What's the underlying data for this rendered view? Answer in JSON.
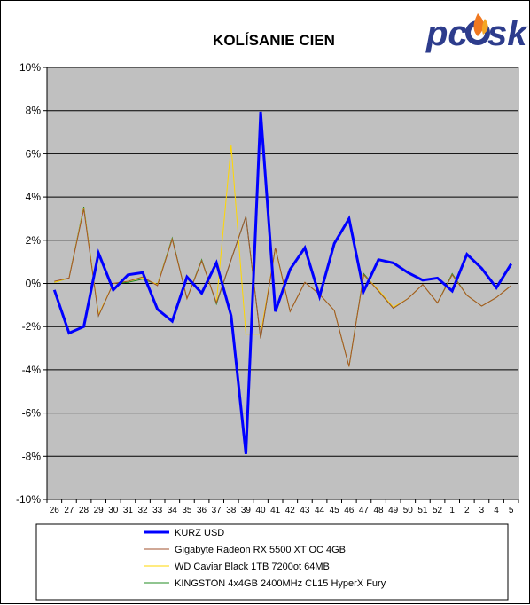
{
  "chart_data": {
    "type": "line",
    "title": "KOLÍSANIE CIEN",
    "xlabel": "",
    "ylabel": "",
    "categories": [
      "26",
      "27",
      "28",
      "29",
      "30",
      "31",
      "32",
      "33",
      "34",
      "35",
      "36",
      "37",
      "38",
      "39",
      "40",
      "41",
      "42",
      "43",
      "44",
      "45",
      "46",
      "47",
      "48",
      "49",
      "50",
      "51",
      "52",
      "1",
      "2",
      "3",
      "4",
      "5"
    ],
    "y_ticks": [
      {
        "value": 10,
        "label": "10%"
      },
      {
        "value": 8,
        "label": "8%"
      },
      {
        "value": 6,
        "label": "6%"
      },
      {
        "value": 4,
        "label": "4%"
      },
      {
        "value": 2,
        "label": "2%"
      },
      {
        "value": 0,
        "label": "0%"
      },
      {
        "value": -2,
        "label": "-2%"
      },
      {
        "value": -4,
        "label": "-4%"
      },
      {
        "value": -6,
        "label": "-6%"
      },
      {
        "value": -8,
        "label": "-8%"
      },
      {
        "value": -10,
        "label": "-10%"
      }
    ],
    "ylim": [
      -10,
      10
    ],
    "grid": "horizontal",
    "legend_position": "bottom",
    "plot_background": "#c0c0c0",
    "series": [
      {
        "name": "KURZ USD",
        "color": "#0000ff",
        "width": "thick",
        "values": [
          -0.3,
          -2.3,
          -2.0,
          1.4,
          -0.3,
          0.4,
          0.5,
          -1.2,
          -1.75,
          0.3,
          -0.45,
          0.95,
          -1.5,
          -7.9,
          7.95,
          -1.3,
          0.65,
          1.65,
          -0.6,
          1.85,
          3.0,
          -0.35,
          1.1,
          0.95,
          0.5,
          0.15,
          0.25,
          -0.35,
          1.35,
          0.7,
          -0.2,
          0.9
        ]
      },
      {
        "name": "Gigabyte Radeon RX 5500 XT OC 4GB",
        "color": "#a0522d",
        "width": "thin",
        "values": [
          0.1,
          0.25,
          3.45,
          -1.5,
          0.0,
          0.1,
          0.3,
          -0.1,
          2.05,
          -0.7,
          1.05,
          -0.9,
          1.1,
          3.1,
          -2.55,
          1.65,
          -1.3,
          0.05,
          -0.5,
          -1.25,
          -3.85,
          0.4,
          -0.35,
          -1.15,
          -0.7,
          -0.05,
          -0.9,
          0.4,
          -0.55,
          -1.05,
          -0.65,
          -0.1
        ]
      },
      {
        "name": "WD Caviar Black 1TB 7200ot 64MB",
        "color": "#ffd700",
        "width": "thin",
        "values": [
          0.05,
          0.25,
          3.5,
          -1.45,
          0.0,
          0.1,
          0.25,
          -0.05,
          2.05,
          -0.7,
          1.05,
          -0.9,
          6.4,
          -2.35,
          -2.35,
          1.6,
          -1.3,
          0.05,
          -0.5,
          -1.25,
          -3.85,
          0.4,
          -0.3,
          -1.1,
          -0.7,
          -0.05,
          -0.9,
          0.4,
          -0.55,
          -1.05,
          -0.65,
          -0.1
        ]
      },
      {
        "name": "KINGSTON 4x4GB 2400MHz CL15 HyperX Fury",
        "color": "#228b22",
        "width": "thin",
        "values": [
          0.05,
          0.25,
          3.55,
          -1.5,
          0.0,
          0.05,
          0.2,
          -0.05,
          2.1,
          -0.7,
          1.1,
          -0.95,
          1.1,
          3.1,
          -2.55,
          1.65,
          -1.3,
          0.05,
          -0.5,
          -1.25,
          -3.85,
          0.45,
          -0.35,
          -1.15,
          -0.7,
          -0.05,
          -0.9,
          0.45,
          -0.55,
          -1.05,
          -0.65,
          -0.1
        ]
      }
    ]
  },
  "logo": {
    "name": "pc-sk-logo",
    "text_left": "pc",
    "text_right": "sk",
    "color": "#2d3c8c",
    "flame_color": "#f07820"
  }
}
